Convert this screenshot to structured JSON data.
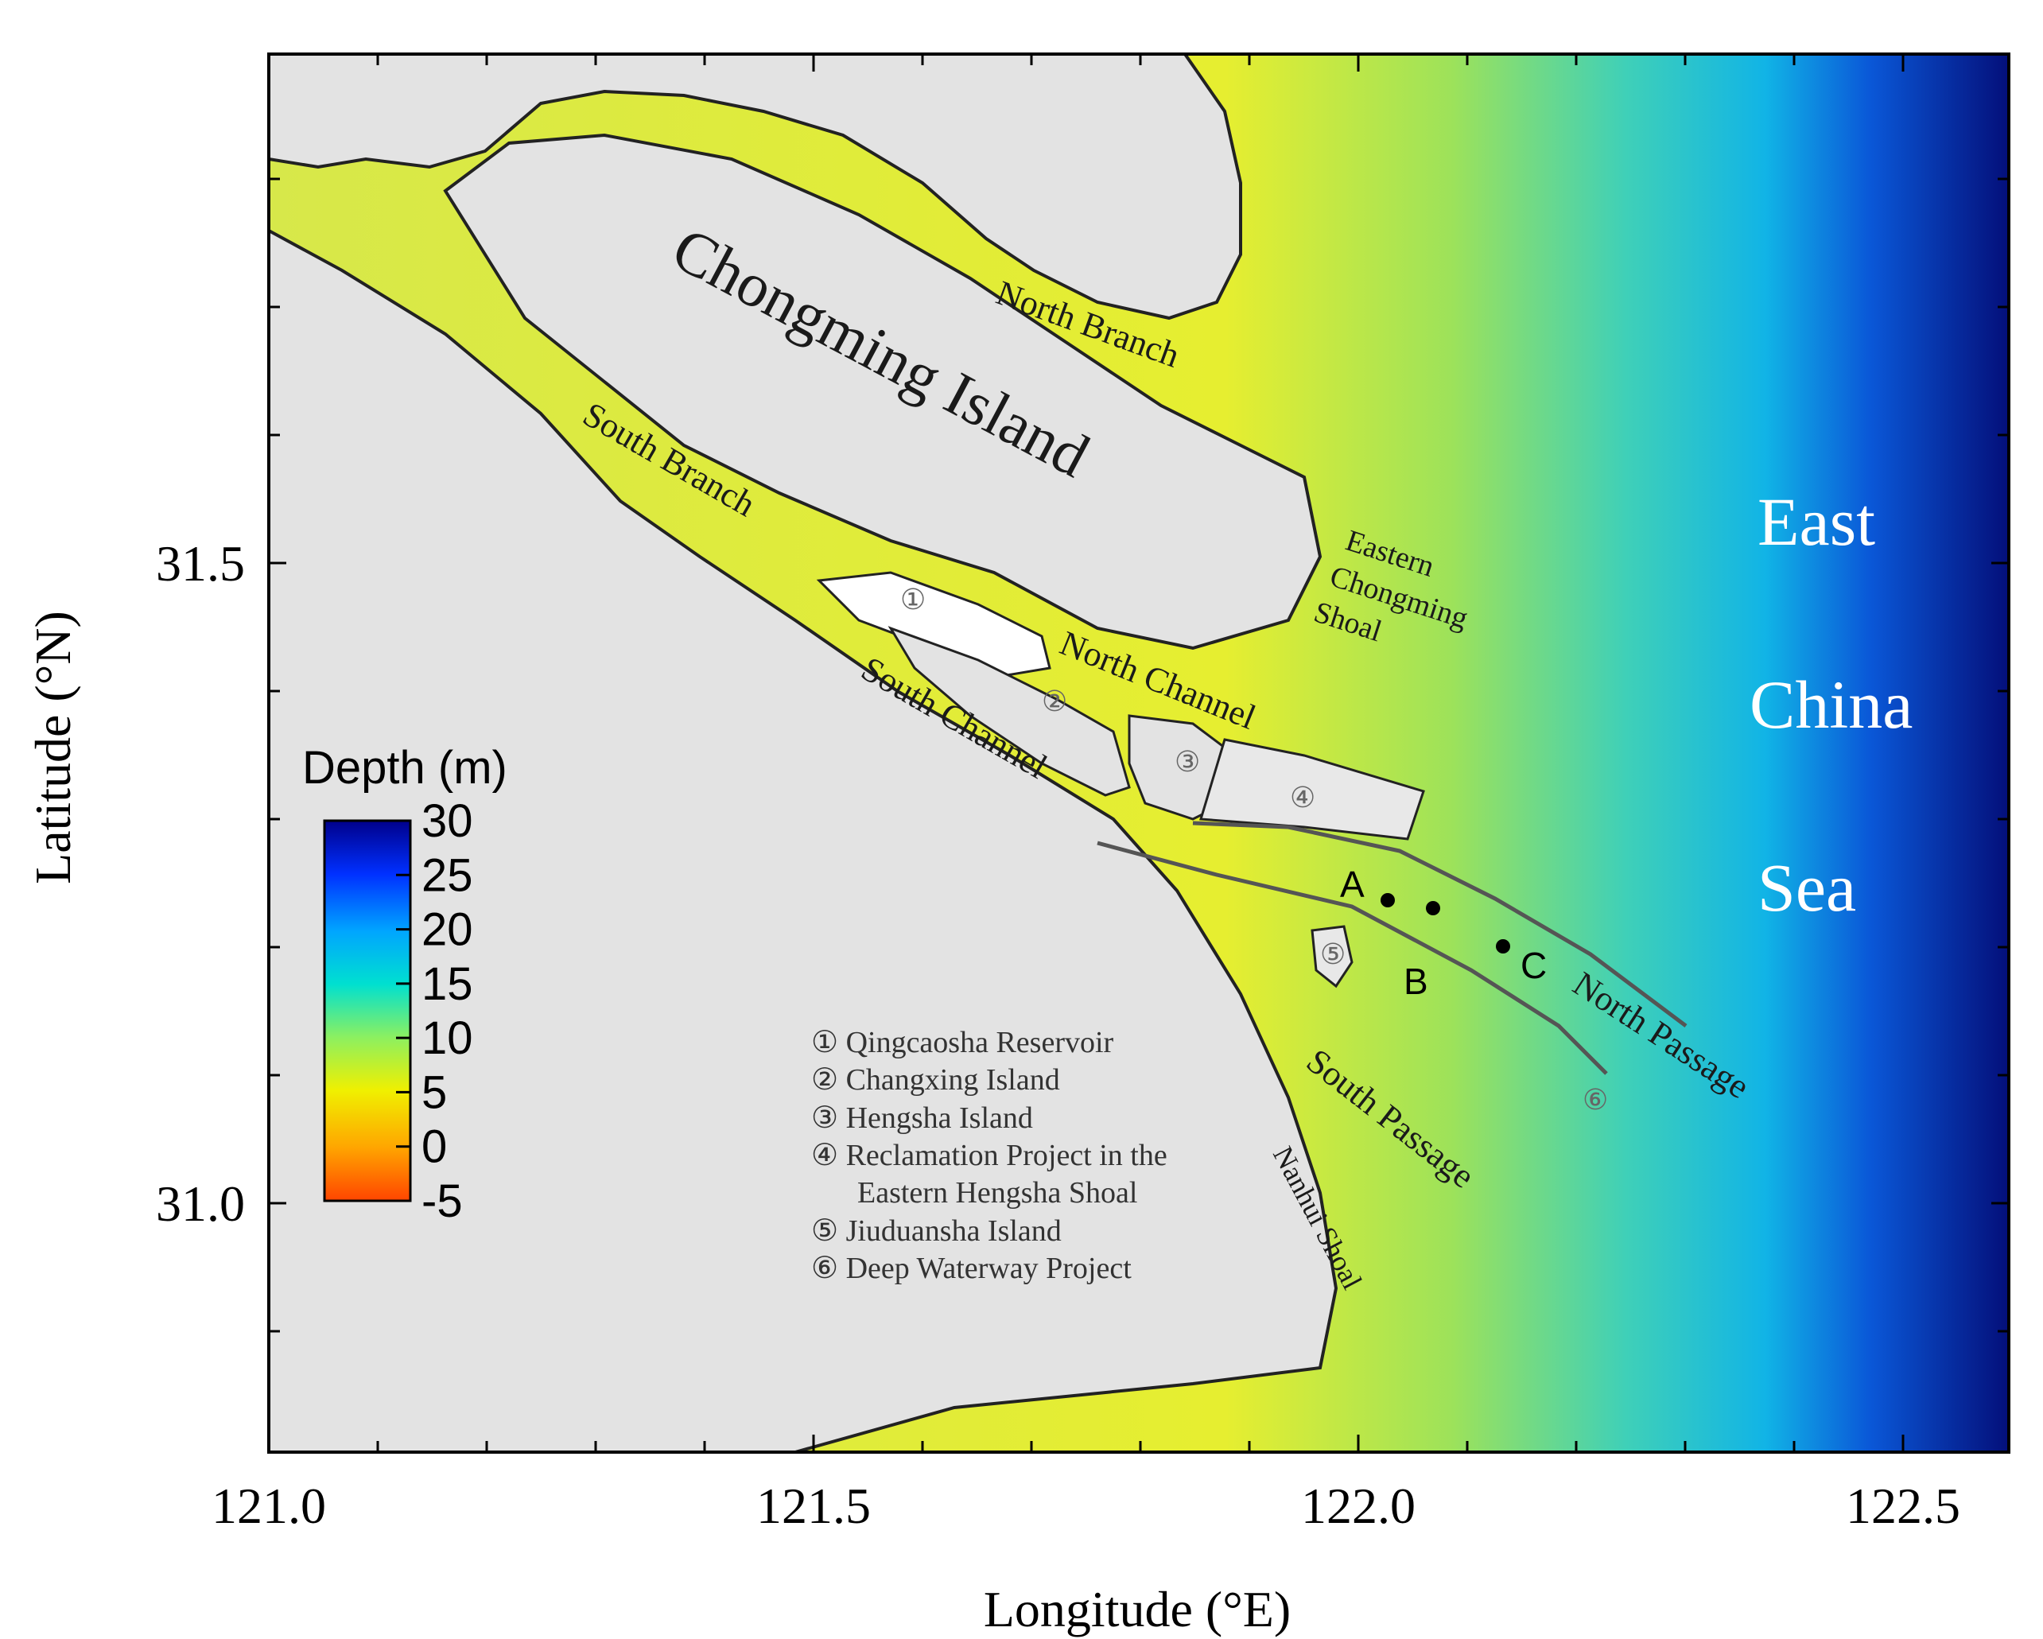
{
  "axes": {
    "x_title": "Longitude (°E)",
    "y_title": "Latitude (°N)",
    "x_ticks": [
      "121.0",
      "121.5",
      "122.0",
      "122.5"
    ],
    "y_ticks": [
      "31.5",
      "31.0"
    ]
  },
  "colorbar": {
    "title": "Depth (m)",
    "ticks": [
      "30",
      "25",
      "20",
      "15",
      "10",
      "5",
      "0",
      "-5"
    ],
    "colors": [
      "#00008b",
      "#0030ff",
      "#00a5ff",
      "#00e0d0",
      "#8cf060",
      "#f0f000",
      "#ffa500",
      "#ff4500"
    ]
  },
  "places": {
    "chongming": "Chongming Island",
    "north_branch": "North Branch",
    "south_branch": "South Branch",
    "north_channel": "North Channel",
    "south_channel": "South Channel",
    "eastern_chongming_1": "Eastern",
    "eastern_chongming_2": "Chongming",
    "eastern_chongming_3": "Shoal",
    "north_passage": "North Passage",
    "south_passage": "South Passage",
    "nanhui_shoal": "Nanhui Shoal",
    "east": "East",
    "china": "China",
    "sea": "Sea"
  },
  "markers": [
    "①",
    "②",
    "③",
    "④",
    "⑤",
    "⑥"
  ],
  "sites": [
    "A",
    "B",
    "C"
  ],
  "legend": [
    "① Qingcaosha Reservoir",
    "② Changxing Island",
    "③ Hengsha Island",
    "④ Reclamation Project in the",
    "Eastern Hengsha Shoal",
    "⑤ Jiuduansha Island",
    "⑥ Deep Waterway Project"
  ]
}
